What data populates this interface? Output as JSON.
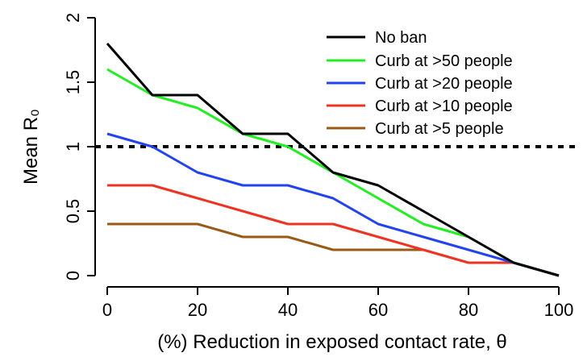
{
  "chart_data": {
    "type": "line",
    "xlabel": "(%) Reduction in exposed contact rate, θ",
    "ylabel": "Mean R₀",
    "xlim": [
      0,
      100
    ],
    "ylim": [
      0,
      2
    ],
    "xticks": [
      "0",
      "20",
      "40",
      "60",
      "80",
      "100"
    ],
    "yticks": [
      "0",
      "0.5",
      "1",
      "1.5",
      "2"
    ],
    "grid": false,
    "legend_position": "top-right",
    "reference_line": {
      "y": 1,
      "style": "dotted",
      "color": "#000000"
    },
    "x": [
      0,
      10,
      20,
      30,
      40,
      50,
      60,
      70,
      80,
      90,
      100
    ],
    "series": [
      {
        "name": "No ban",
        "color": "#000000",
        "values": [
          1.8,
          1.4,
          1.4,
          1.1,
          1.1,
          0.8,
          0.7,
          0.5,
          0.3,
          0.1,
          0.0
        ]
      },
      {
        "name": "Curb at >50 people",
        "color": "#22ee22",
        "values": [
          1.6,
          1.4,
          1.3,
          1.1,
          1.0,
          0.8,
          0.6,
          0.4,
          0.3,
          0.1,
          0.0
        ]
      },
      {
        "name": "Curb at >20 people",
        "color": "#2244ee",
        "values": [
          1.1,
          1.0,
          0.8,
          0.7,
          0.7,
          0.6,
          0.4,
          0.3,
          0.2,
          0.1,
          0.0
        ]
      },
      {
        "name": "Curb at >10 people",
        "color": "#ee3322",
        "values": [
          0.7,
          0.7,
          0.6,
          0.5,
          0.4,
          0.4,
          0.3,
          0.2,
          0.1,
          0.1,
          0.0
        ]
      },
      {
        "name": "Curb at >5 people",
        "color": "#9a5a14",
        "values": [
          0.4,
          0.4,
          0.4,
          0.3,
          0.3,
          0.2,
          0.2,
          0.2,
          null,
          null,
          null
        ]
      }
    ]
  }
}
